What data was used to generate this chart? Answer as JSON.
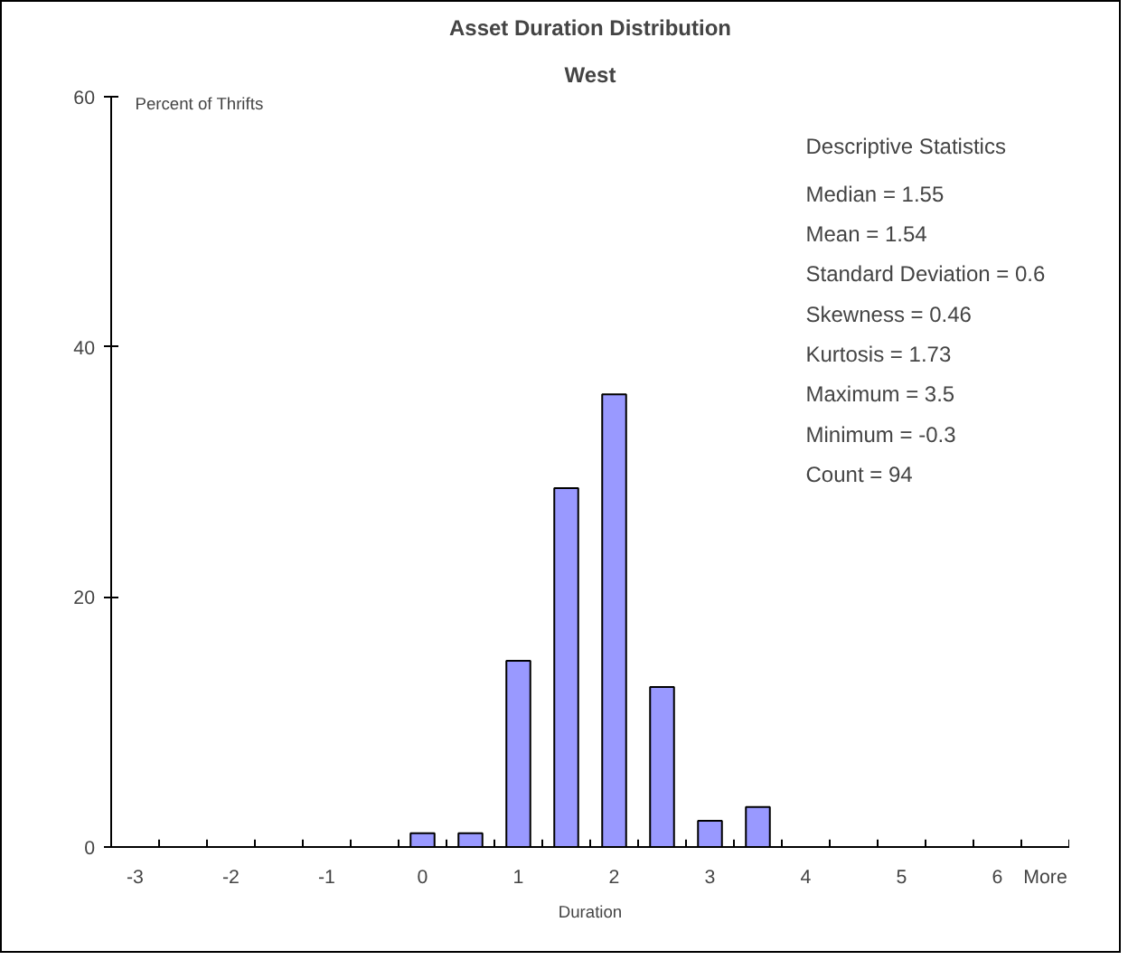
{
  "chart_data": {
    "type": "bar",
    "title": "Asset Duration Distribution",
    "subtitle": "West",
    "xlabel": "Duration",
    "ylabel": "Percent of Thrifts",
    "categories": [
      "-3",
      null,
      "-2",
      null,
      "-1",
      null,
      "0",
      null,
      "1",
      null,
      "2",
      null,
      "3",
      null,
      "4",
      null,
      "5",
      null,
      "6",
      "More"
    ],
    "values": [
      0,
      0,
      0,
      0,
      0,
      0,
      1.1,
      1.1,
      14.9,
      28.7,
      36.2,
      12.8,
      2.1,
      3.2,
      0,
      0,
      0,
      0,
      0,
      0
    ],
    "color": "#9999ff",
    "ylim": [
      0,
      60
    ],
    "yticks": [
      0,
      20,
      40,
      60
    ],
    "grid": false,
    "annotations": [
      "Descriptive Statistics",
      "Median = 1.55",
      "Mean = 1.54",
      "Standard Deviation = 0.6",
      "Skewness = 0.46",
      "Kurtosis = 1.73",
      "Maximum = 3.5",
      "Minimum = -0.3",
      "Count = 94"
    ]
  }
}
